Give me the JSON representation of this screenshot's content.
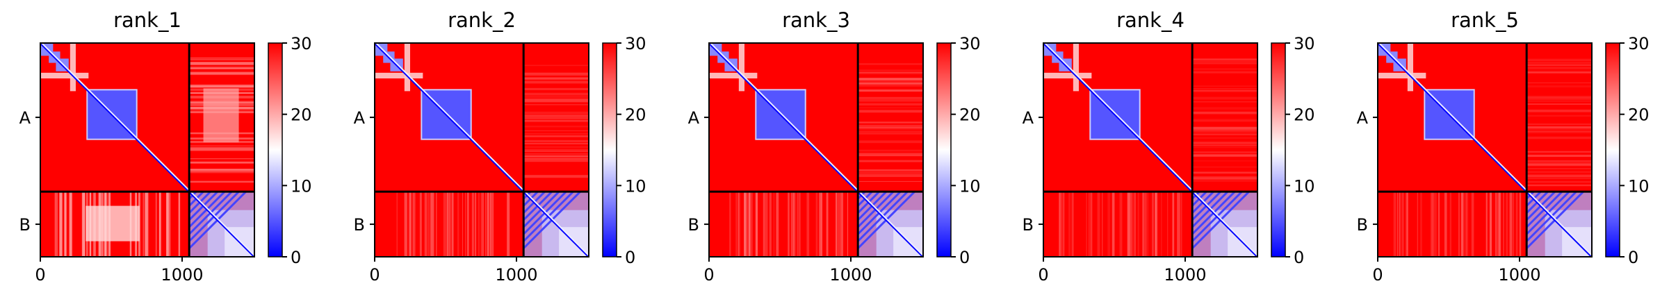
{
  "chart_data": {
    "type": "heatmap",
    "colormap": {
      "colors": [
        "#0000ff",
        "#ffffff",
        "#ff0000"
      ],
      "vmin": 0,
      "vmax": 30
    },
    "colorbar_ticks": [
      "0",
      "10",
      "20",
      "30"
    ],
    "x_ticks": [
      {
        "value": 0,
        "label": "0"
      },
      {
        "value": 1000,
        "label": "1000"
      }
    ],
    "axis_extent": [
      0,
      1510
    ],
    "chain_boundary": 1050,
    "chains": [
      {
        "label": "A",
        "center": 525
      },
      {
        "label": "B",
        "center": 1280
      }
    ],
    "panels": [
      {
        "title": "rank_1",
        "ab_offdiag_level": 22
      },
      {
        "title": "rank_2",
        "ab_offdiag_level": 27
      },
      {
        "title": "rank_3",
        "ab_offdiag_level": 27
      },
      {
        "title": "rank_4",
        "ab_offdiag_level": 28
      },
      {
        "title": "rank_5",
        "ab_offdiag_level": 28
      }
    ]
  }
}
